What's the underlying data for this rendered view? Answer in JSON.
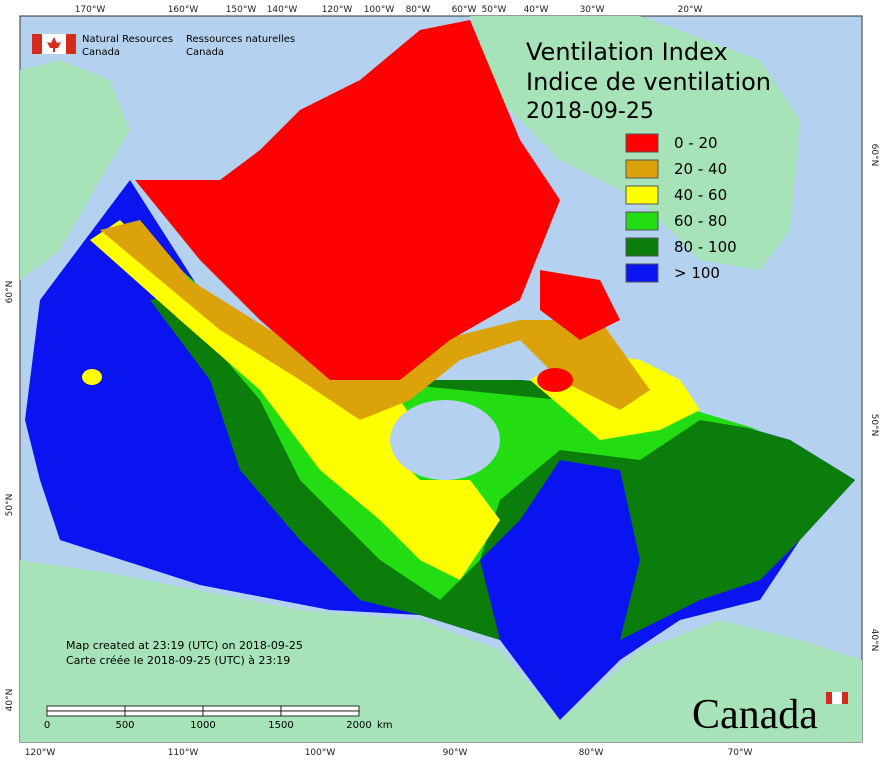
{
  "agency": {
    "en_line1": "Natural Resources",
    "en_line2": "Canada",
    "fr_line1": "Ressources naturelles",
    "fr_line2": "Canada"
  },
  "title": {
    "en": "Ventilation Index",
    "fr": "Indice de ventilation",
    "date": "2018-09-25"
  },
  "legend": [
    {
      "label": "0 - 20",
      "color": "#ff0000"
    },
    {
      "label": "20 - 40",
      "color": "#dca20a"
    },
    {
      "label": "40 - 60",
      "color": "#ffff00"
    },
    {
      "label": "60 - 80",
      "color": "#22dd11"
    },
    {
      "label": "80 - 100",
      "color": "#0a7d0a"
    },
    {
      "label": "> 100",
      "color": "#0a14f0"
    }
  ],
  "graticule": {
    "top": [
      "170°W",
      "160°W",
      "150°W",
      "140°W",
      "120°W",
      "100°W",
      "80°W",
      "60°W",
      "50°W",
      "40°W",
      "30°W",
      "20°W"
    ],
    "bottom": [
      "120°W",
      "110°W",
      "100°W",
      "90°W",
      "80°W",
      "70°W"
    ],
    "left": [
      "60°N",
      "50°N",
      "40°N"
    ],
    "right": [
      "60°N",
      "50°N",
      "40°N"
    ]
  },
  "notes": [
    "Map created at 23:19 (UTC) on 2018-09-25",
    "Carte créée le 2018-09-25 (UTC) à 23:19"
  ],
  "scale_bar": {
    "ticks": [
      "0",
      "500",
      "1000",
      "1500",
      "2000"
    ],
    "unit": "km"
  },
  "wordmark": "Canada"
}
